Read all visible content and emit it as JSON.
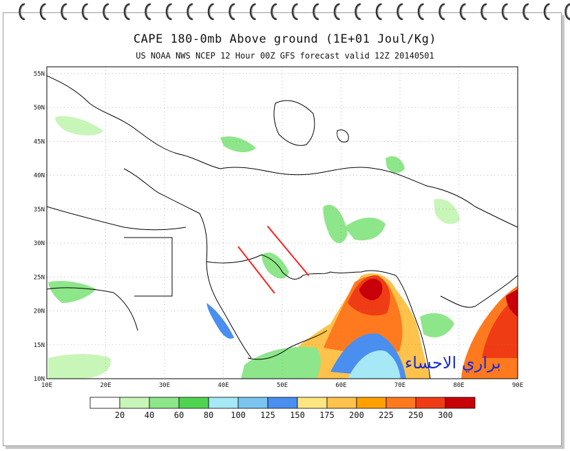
{
  "title": "CAPE 180-0mb Above ground (1E+01 Joul/Kg)",
  "subtitle": "US NOAA NWS NCEP 12 Hour 00Z GFS forecast valid 12Z 20140501",
  "watermark": "براري الاحساء",
  "map": {
    "lon_min": 10,
    "lon_max": 90,
    "lat_min": 10,
    "lat_max": 56,
    "lat_labels": [
      "55N",
      "50N",
      "45N",
      "40N",
      "35N",
      "30N",
      "25N",
      "20N",
      "15N",
      "10N"
    ],
    "lat_values": [
      55,
      50,
      45,
      40,
      35,
      30,
      25,
      20,
      15,
      10
    ],
    "lon_labels": [
      "10E",
      "20E",
      "30E",
      "40E",
      "50E",
      "60E",
      "70E",
      "80E",
      "90E"
    ],
    "lon_values": [
      10,
      20,
      30,
      40,
      50,
      60,
      70,
      80,
      90
    ]
  },
  "colorbar": {
    "colors": [
      "#ffffff",
      "#c8f5b8",
      "#8ee68a",
      "#50d450",
      "#a6e8f5",
      "#7cc4f0",
      "#4a8ef0",
      "#ffe680",
      "#ffc24a",
      "#ffa000",
      "#ff7a1e",
      "#f03c14",
      "#c8000a"
    ],
    "labels": [
      "20",
      "40",
      "60",
      "80",
      "100",
      "125",
      "150",
      "175",
      "200",
      "225",
      "250",
      "300"
    ]
  },
  "annotation_lines": [
    {
      "color": "#ff2020",
      "from": [
        47.5,
        32.5
      ],
      "to": [
        54.5,
        25.2
      ]
    },
    {
      "color": "#ff2020",
      "from": [
        42.5,
        29.5
      ],
      "to": [
        48.7,
        22.6
      ]
    }
  ]
}
